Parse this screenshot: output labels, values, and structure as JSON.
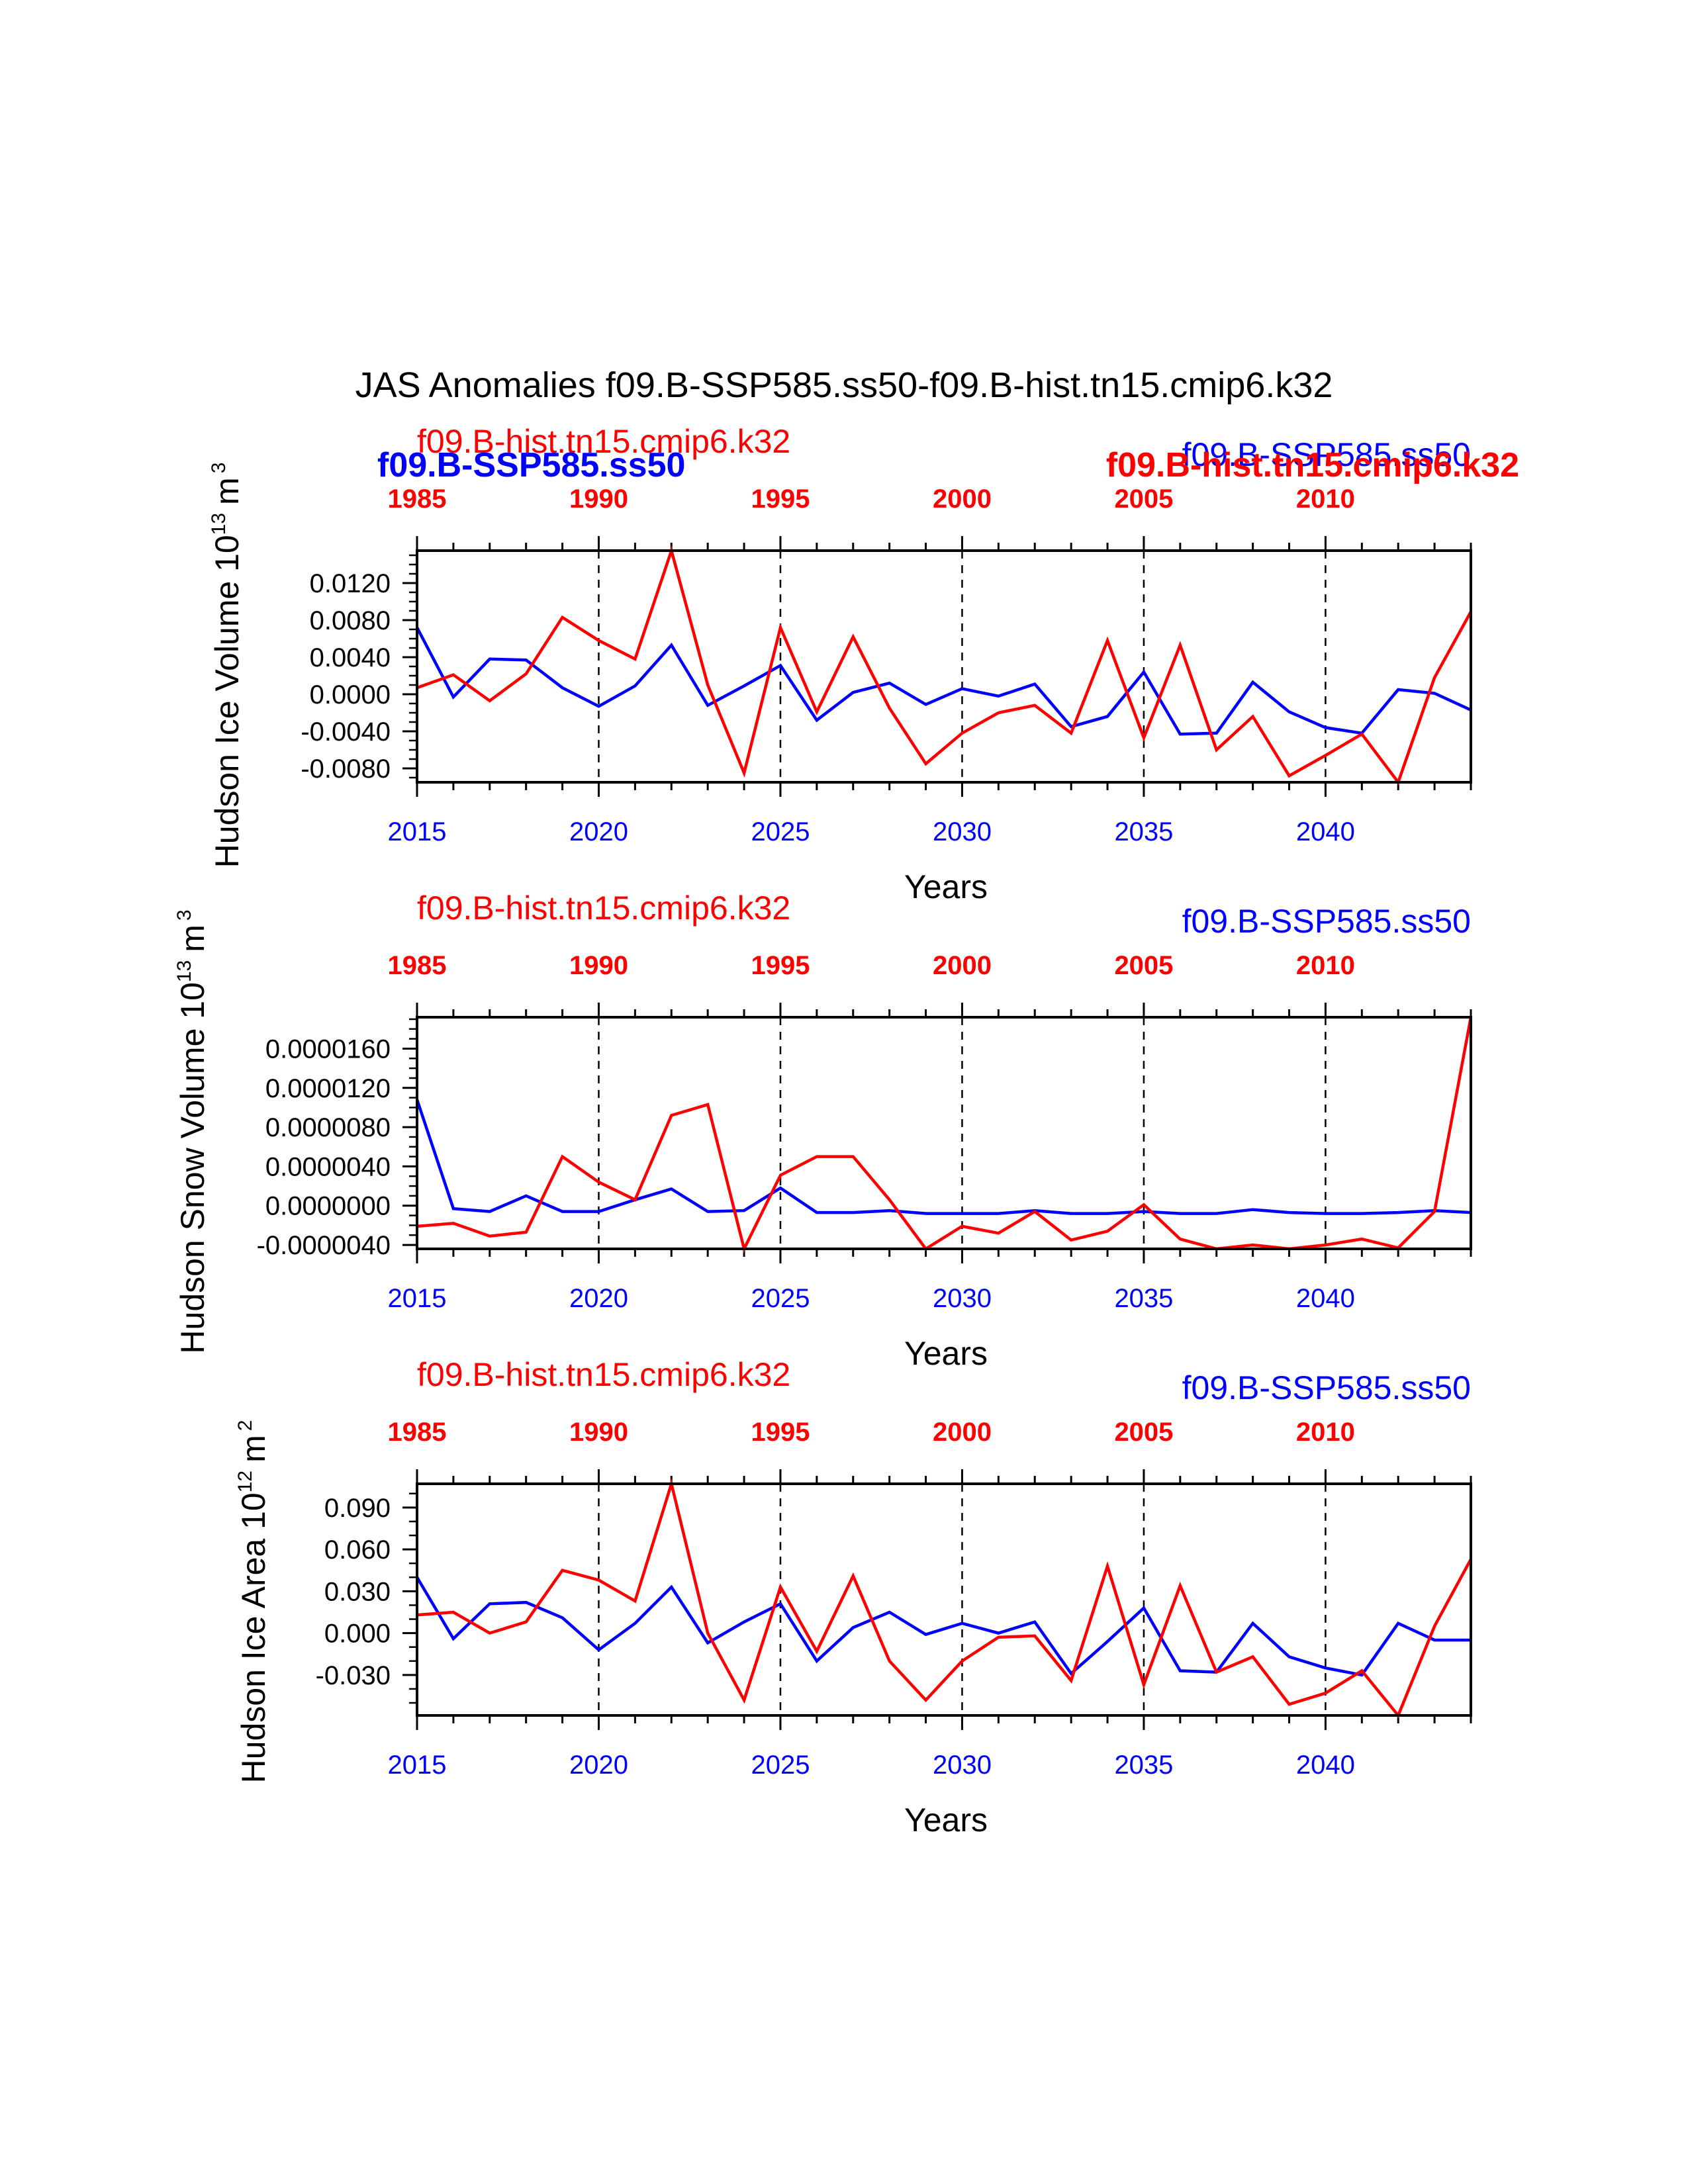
{
  "title": "JAS Anomalies f09.B-SSP585.ss50-f09.B-hist.tn15.cmip6.k32",
  "legend": {
    "blue_label": "f09.B-SSP585.ss50",
    "red_label": "f09.B-hist.tn15.cmip6.k32",
    "blue_color": "#0000ff",
    "red_color": "#ff0000"
  },
  "chart_data": [
    {
      "type": "line",
      "ylabel": "Hudson Ice Volume 10",
      "yunit_exp": "13",
      "yunit_base": "m",
      "yunit_pow": "3",
      "xlabel": "Years",
      "xlim_bottom": [
        2015,
        2044
      ],
      "xlim_top": [
        1985,
        2014
      ],
      "ylim": [
        -0.0095,
        0.0155
      ],
      "yticks": [
        -0.008,
        -0.004,
        0.0,
        0.004,
        0.008,
        0.012
      ],
      "ytick_labels": [
        "-0.0080",
        "-0.0040",
        "0.0000",
        "0.0040",
        "0.0080",
        "0.0120"
      ],
      "yminor_step": 0.001,
      "xticks_bottom": [
        2015,
        2020,
        2025,
        2030,
        2035,
        2040
      ],
      "xtick_labels_bottom": [
        "2015",
        "2020",
        "2025",
        "2030",
        "2035",
        "2040"
      ],
      "xticks_top": [
        1985,
        1990,
        1995,
        2000,
        2005,
        2010
      ],
      "xtick_labels_top": [
        "1985",
        "1990",
        "1995",
        "2000",
        "2005",
        "2010"
      ],
      "series_label_left": "f09.B-hist.tn15.cmip6.k32",
      "series_label_right": "f09.B-SSP585.ss50",
      "overlay_label_left": "f09.B-SSP585.ss50",
      "overlay_label_right": "f09.B-hist.tn15.cmip6.k32",
      "series": [
        {
          "name": "f09.B-SSP585.ss50",
          "color": "#0000ff",
          "axis": "bottom",
          "x": [
            2015,
            2016,
            2017,
            2018,
            2019,
            2020,
            2021,
            2022,
            2023,
            2024,
            2025,
            2026,
            2027,
            2028,
            2029,
            2030,
            2031,
            2032,
            2033,
            2034,
            2035,
            2036,
            2037,
            2038,
            2039,
            2040,
            2041,
            2042,
            2043,
            2044
          ],
          "values": [
            0.0072,
            -0.0003,
            0.0038,
            0.0037,
            0.0007,
            -0.0013,
            0.0009,
            0.0053,
            -0.0012,
            0.0009,
            0.0031,
            -0.0028,
            0.0002,
            0.0012,
            -0.0011,
            0.0006,
            -0.0002,
            0.0011,
            -0.0035,
            -0.0024,
            0.0024,
            -0.0043,
            -0.0042,
            0.0013,
            -0.0019,
            -0.0036,
            -0.0042,
            0.0005,
            0.0001,
            -0.0017
          ]
        },
        {
          "name": "f09.B-hist.tn15.cmip6.k32",
          "color": "#ff0000",
          "axis": "top",
          "x": [
            1985,
            1986,
            1987,
            1988,
            1989,
            1990,
            1991,
            1992,
            1993,
            1994,
            1995,
            1996,
            1997,
            1998,
            1999,
            2000,
            2001,
            2002,
            2003,
            2004,
            2005,
            2006,
            2007,
            2008,
            2009,
            2010,
            2011,
            2012,
            2013,
            2014
          ],
          "values": [
            0.0007,
            0.0021,
            -0.0007,
            0.0022,
            0.0083,
            0.0058,
            0.0038,
            0.0155,
            0.001,
            -0.0085,
            0.0072,
            -0.0019,
            0.0062,
            -0.0015,
            -0.0075,
            -0.0042,
            -0.002,
            -0.0012,
            -0.0042,
            0.0058,
            -0.0047,
            0.0053,
            -0.006,
            -0.0024,
            -0.0088,
            -0.0066,
            -0.0043,
            -0.0095,
            0.0018,
            0.0089
          ]
        }
      ]
    },
    {
      "type": "line",
      "ylabel": "Hudson Snow Volume 10",
      "yunit_exp": "13",
      "yunit_base": "m",
      "yunit_pow": "3",
      "xlabel": "Years",
      "xlim_bottom": [
        2015,
        2044
      ],
      "xlim_top": [
        1985,
        2014
      ],
      "ylim": [
        -4.4e-06,
        1.92e-05
      ],
      "yticks": [
        -4e-06,
        0.0,
        4e-06,
        8e-06,
        1.2e-05,
        1.6e-05
      ],
      "ytick_labels": [
        "-0.0000040",
        "0.0000000",
        "0.0000040",
        "0.0000080",
        "0.0000120",
        "0.0000160"
      ],
      "yminor_step": 1e-06,
      "xticks_bottom": [
        2015,
        2020,
        2025,
        2030,
        2035,
        2040
      ],
      "xtick_labels_bottom": [
        "2015",
        "2020",
        "2025",
        "2030",
        "2035",
        "2040"
      ],
      "xticks_top": [
        1985,
        1990,
        1995,
        2000,
        2005,
        2010
      ],
      "xtick_labels_top": [
        "1985",
        "1990",
        "1995",
        "2000",
        "2005",
        "2010"
      ],
      "series_label_left": "f09.B-hist.tn15.cmip6.k32",
      "series_label_right": "f09.B-SSP585.ss50",
      "series": [
        {
          "name": "f09.B-SSP585.ss50",
          "color": "#0000ff",
          "axis": "bottom",
          "x": [
            2015,
            2016,
            2017,
            2018,
            2019,
            2020,
            2021,
            2022,
            2023,
            2024,
            2025,
            2026,
            2027,
            2028,
            2029,
            2030,
            2031,
            2032,
            2033,
            2034,
            2035,
            2036,
            2037,
            2038,
            2039,
            2040,
            2041,
            2042,
            2043,
            2044
          ],
          "values": [
            1.08e-05,
            -3e-07,
            -6e-07,
            1e-06,
            -6e-07,
            -6e-07,
            6e-07,
            1.7e-06,
            -6e-07,
            -5e-07,
            1.8e-06,
            -7e-07,
            -7e-07,
            -5e-07,
            -8e-07,
            -8e-07,
            -8e-07,
            -5e-07,
            -8e-07,
            -8e-07,
            -6e-07,
            -8e-07,
            -8e-07,
            -4e-07,
            -7e-07,
            -8e-07,
            -8e-07,
            -7e-07,
            -5e-07,
            -7e-07
          ]
        },
        {
          "name": "f09.B-hist.tn15.cmip6.k32",
          "color": "#ff0000",
          "axis": "top",
          "x": [
            1985,
            1986,
            1987,
            1988,
            1989,
            1990,
            1991,
            1992,
            1993,
            1994,
            1995,
            1996,
            1997,
            1998,
            1999,
            2000,
            2001,
            2002,
            2003,
            2004,
            2005,
            2006,
            2007,
            2008,
            2009,
            2010,
            2011,
            2012,
            2013,
            2014
          ],
          "values": [
            -2.1e-06,
            -1.8e-06,
            -3.1e-06,
            -2.7e-06,
            5e-06,
            2.4e-06,
            6e-07,
            9.2e-06,
            1.03e-05,
            -4.4e-06,
            3.1e-06,
            5e-06,
            5e-06,
            6e-07,
            -4.4e-06,
            -2.1e-06,
            -2.8e-06,
            -6e-07,
            -3.5e-06,
            -2.6e-06,
            1e-07,
            -3.4e-06,
            -4.4e-06,
            -4e-06,
            -4.4e-06,
            -4e-06,
            -3.4e-06,
            -4.3e-06,
            -6e-07,
            1.92e-05
          ]
        }
      ]
    },
    {
      "type": "line",
      "ylabel": "Hudson Ice Area 10",
      "yunit_exp": "12",
      "yunit_base": "m",
      "yunit_pow": "2",
      "xlabel": "Years",
      "xlim_bottom": [
        2015,
        2044
      ],
      "xlim_top": [
        1985,
        2014
      ],
      "ylim": [
        -0.059,
        0.107
      ],
      "yticks": [
        -0.03,
        0.0,
        0.03,
        0.06,
        0.09
      ],
      "ytick_labels": [
        "-0.030",
        "0.000",
        "0.030",
        "0.060",
        "0.090"
      ],
      "yminor_step": 0.01,
      "xticks_bottom": [
        2015,
        2020,
        2025,
        2030,
        2035,
        2040
      ],
      "xtick_labels_bottom": [
        "2015",
        "2020",
        "2025",
        "2030",
        "2035",
        "2040"
      ],
      "xticks_top": [
        1985,
        1990,
        1995,
        2000,
        2005,
        2010
      ],
      "xtick_labels_top": [
        "1985",
        "1990",
        "1995",
        "2000",
        "2005",
        "2010"
      ],
      "series_label_left": "f09.B-hist.tn15.cmip6.k32",
      "series_label_right": "f09.B-SSP585.ss50",
      "series": [
        {
          "name": "f09.B-SSP585.ss50",
          "color": "#0000ff",
          "axis": "bottom",
          "x": [
            2015,
            2016,
            2017,
            2018,
            2019,
            2020,
            2021,
            2022,
            2023,
            2024,
            2025,
            2026,
            2027,
            2028,
            2029,
            2030,
            2031,
            2032,
            2033,
            2034,
            2035,
            2036,
            2037,
            2038,
            2039,
            2040,
            2041,
            2042,
            2043,
            2044
          ],
          "values": [
            0.04,
            -0.004,
            0.021,
            0.022,
            0.011,
            -0.012,
            0.007,
            0.033,
            -0.007,
            0.008,
            0.021,
            -0.02,
            0.004,
            0.015,
            -0.001,
            0.007,
            0.0,
            0.008,
            -0.029,
            -0.006,
            0.018,
            -0.027,
            -0.028,
            0.007,
            -0.017,
            -0.025,
            -0.03,
            0.007,
            -0.005,
            -0.005
          ]
        },
        {
          "name": "f09.B-hist.tn15.cmip6.k32",
          "color": "#ff0000",
          "axis": "top",
          "x": [
            1985,
            1986,
            1987,
            1988,
            1989,
            1990,
            1991,
            1992,
            1993,
            1994,
            1995,
            1996,
            1997,
            1998,
            1999,
            2000,
            2001,
            2002,
            2003,
            2004,
            2005,
            2006,
            2007,
            2008,
            2009,
            2010,
            2011,
            2012,
            2013,
            2014
          ],
          "values": [
            0.013,
            0.015,
            0.0,
            0.008,
            0.045,
            0.038,
            0.023,
            0.107,
            0.0,
            -0.048,
            0.033,
            -0.013,
            0.041,
            -0.02,
            -0.048,
            -0.02,
            -0.003,
            -0.002,
            -0.034,
            0.048,
            -0.037,
            0.034,
            -0.028,
            -0.017,
            -0.051,
            -0.043,
            -0.027,
            -0.059,
            0.005,
            0.053
          ]
        }
      ]
    }
  ]
}
